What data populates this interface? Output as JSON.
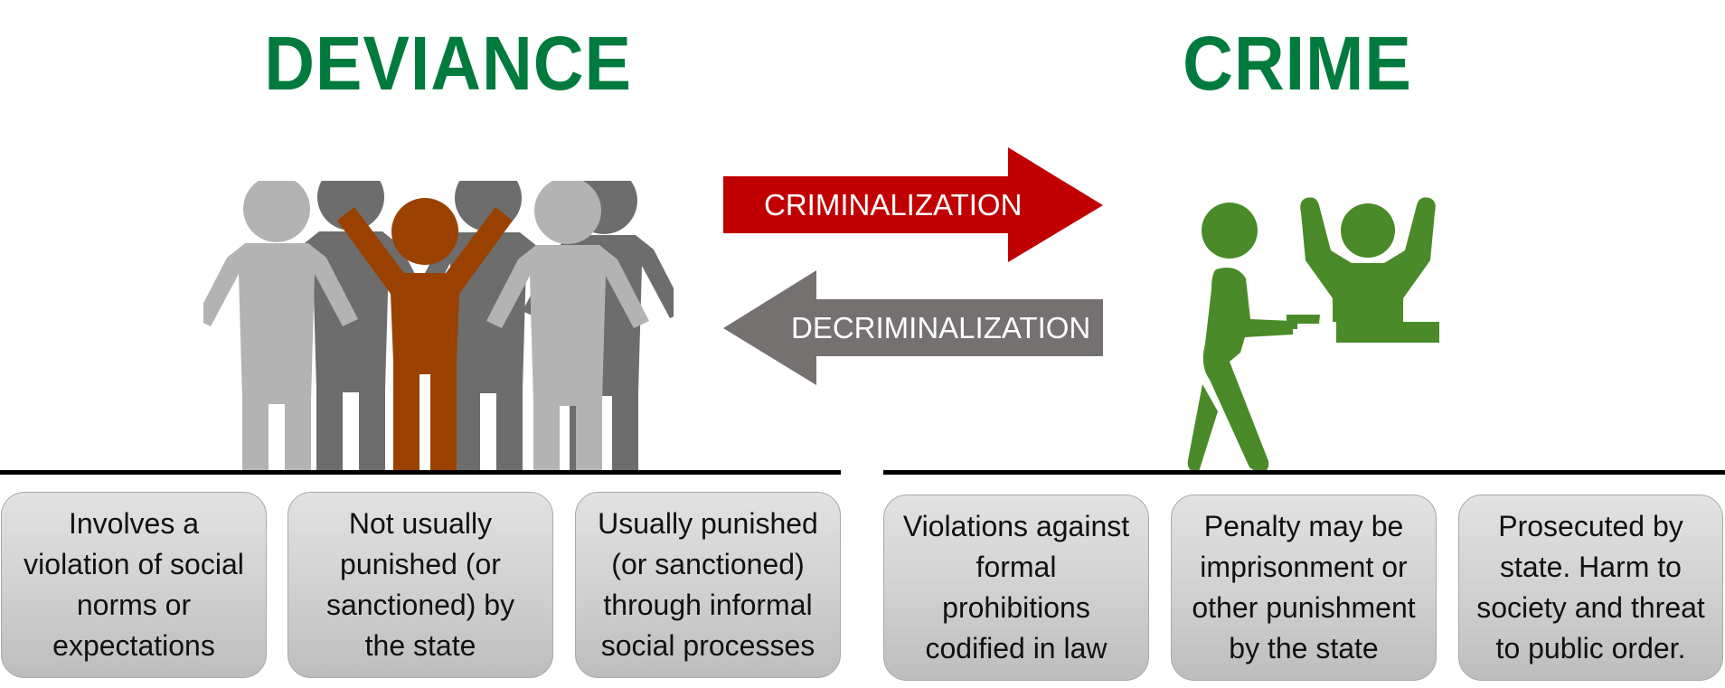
{
  "titles": {
    "deviance": "DEVIANCE",
    "crime": "CRIME"
  },
  "arrows": {
    "criminalization": {
      "label": "CRIMINALIZATION",
      "color": "#c00000"
    },
    "decriminalization": {
      "label": "DECRIMINALIZATION",
      "color": "#767171"
    }
  },
  "colors": {
    "title": "#007a3d",
    "crowd_light": "#b3b3b3",
    "crowd_dark": "#6d6d6d",
    "crowd_highlight": "#9a4100",
    "crime_figures": "#4a8a28",
    "card_border": "#a9a9a9"
  },
  "icons": {
    "crowd": "crowd-of-people-icon",
    "robbery": "armed-robbery-icon"
  },
  "deviance_cards": [
    {
      "text": "Involves a violation of social norms or expectations"
    },
    {
      "text": "Not usually punished (or sanctioned) by the state"
    },
    {
      "text": "Usually punished (or sanctioned) through informal social processes"
    }
  ],
  "crime_cards": [
    {
      "text": "Violations against formal prohibitions codified in law"
    },
    {
      "text": "Penalty may be imprisonment or other punishment by the state"
    },
    {
      "text": "Prosecuted by state. Harm to society and threat to public order."
    }
  ]
}
